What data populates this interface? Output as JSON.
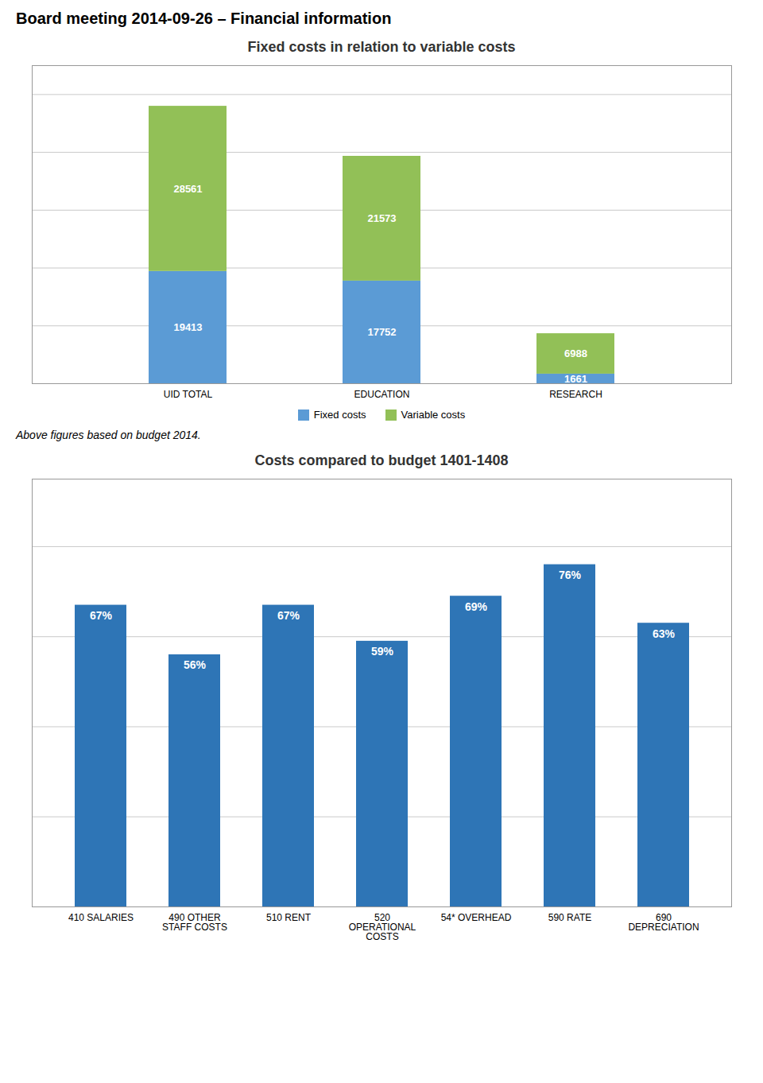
{
  "title": "Board meeting 2014-09-26 – Financial information",
  "chart_data": [
    {
      "type": "bar",
      "title": "Fixed costs in relation to variable costs",
      "categories": [
        "UID TOTAL",
        "EDUCATION",
        "RESEARCH"
      ],
      "series": [
        {
          "name": "Fixed costs",
          "color": "#5B9BD5",
          "values": [
            19413,
            17752,
            1661
          ]
        },
        {
          "name": "Variable costs",
          "color": "#92C057",
          "values": [
            28561,
            21573,
            6988
          ]
        }
      ],
      "stacked": true,
      "ylim": [
        0,
        55000
      ],
      "yticks": [
        10000,
        20000,
        30000,
        40000,
        50000
      ],
      "grid": true,
      "tick_labels": "x",
      "data_labels": true,
      "legend": "bottom",
      "annotations": [
        "Above figures based on budget 2014."
      ]
    },
    {
      "type": "bar",
      "title": "Costs compared to budget 1401-1408",
      "categories": [
        "410 SALARIES",
        "490 OTHER\nSTAFF COSTS",
        "510 RENT",
        "520\nOPERATIONAL\nCOSTS",
        "54* OVERHEAD",
        "590 RATE",
        "690\nDEPRECIATION"
      ],
      "values": [
        67,
        56,
        67,
        59,
        69,
        76,
        63
      ],
      "value_labels": [
        "67%",
        "56%",
        "67%",
        "59%",
        "69%",
        "76%",
        "63%"
      ],
      "color": "#2E75B6",
      "ylim": [
        0,
        95
      ],
      "yticks": [
        20,
        40,
        60,
        80
      ],
      "grid": true,
      "tick_labels": "x",
      "data_labels": true
    }
  ]
}
